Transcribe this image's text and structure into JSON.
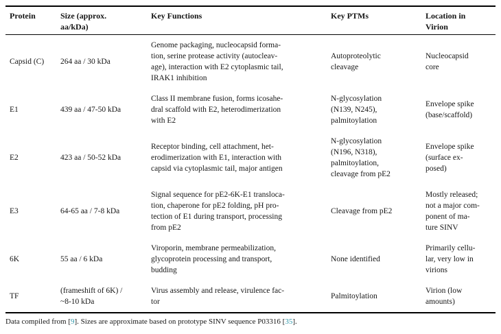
{
  "accent_colors": {
    "citation": "#2E96A9",
    "text": "#161616",
    "rule": "#000000"
  },
  "table": {
    "headers": [
      "Protein",
      "Size (approx.\naa/kDa)",
      "Key Functions",
      "Key PTMs",
      "Location in\nVirion"
    ],
    "rows": [
      {
        "protein": "Capsid (C)",
        "size": "264 aa / 30 kDa",
        "functions": "Genome packaging, nucleocapsid forma-\ntion, serine protease activity (autocleav-\nage), interaction with E2 cytoplasmic tail,\nIRAK1 inhibition",
        "ptms": "Autoproteolytic\ncleavage",
        "location": "Nucleocapsid\ncore"
      },
      {
        "protein": "E1",
        "size": "439 aa / 47-50 kDa",
        "functions": "Class II membrane fusion, forms icosahe-\ndral scaffold with E2, heterodimerization\nwith E2",
        "ptms": "N-glycosylation\n(N139, N245),\npalmitoylation",
        "location": "Envelope spike\n(base/scaffold)"
      },
      {
        "protein": "E2",
        "size": "423 aa / 50-52 kDa",
        "functions": "Receptor binding, cell attachment, het-\nerodimerization with E1, interaction with\ncapsid via cytoplasmic tail, major antigen",
        "ptms": "N-glycosylation\n(N196, N318),\npalmitoylation,\ncleavage from pE2",
        "location": "Envelope spike\n(surface ex-\nposed)"
      },
      {
        "protein": "E3",
        "size": "64-65 aa / 7-8 kDa",
        "functions": "Signal sequence for pE2-6K-E1 transloca-\ntion, chaperone for pE2 folding, pH pro-\ntection of E1 during transport, processing\nfrom pE2",
        "ptms": "Cleavage from pE2",
        "location": "Mostly released;\nnot a major com-\nponent of ma-\nture SINV"
      },
      {
        "protein": "6K",
        "size": "55 aa / 6 kDa",
        "functions": "Viroporin, membrane permeabilization,\nglycoprotein processing and transport,\nbudding",
        "ptms": "None identified",
        "location": "Primarily cellu-\nlar, very low in\nvirions"
      },
      {
        "protein": "TF",
        "size": "(frameshift of 6K) /\n~8-10 kDa",
        "functions": "Virus assembly and release, virulence fac-\ntor",
        "ptms": "Palmitoylation",
        "location": "Virion (low\namounts)"
      }
    ]
  },
  "footnote": {
    "before_ref1": "Data compiled from [",
    "ref1": "9",
    "between": "]. Sizes are approximate based on prototype SINV sequence P03316 [",
    "ref2": "35",
    "after": "]."
  }
}
